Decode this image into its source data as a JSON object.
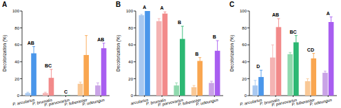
{
  "chart_data": [
    {
      "type": "bar",
      "title": "A",
      "y_label": "Decolorization (%)",
      "categories": [
        "P. arcularius",
        "P. brumalis",
        "P. parvovarius",
        "P. tuberaster",
        "P. udeungus"
      ],
      "series": [
        {
          "colors": [
            "#a8c8f0",
            "#f4b3b3",
            "#8fd9ad",
            "#f9c896",
            "#c9a3e6"
          ],
          "values": [
            3,
            3,
            0,
            14,
            12
          ],
          "errors": [
            1,
            1,
            0,
            2,
            3
          ]
        },
        {
          "colors": [
            "#4a96ea",
            "#f28a8a",
            "#2cb873",
            "#f9a650",
            "#a85ef0"
          ],
          "values": [
            50,
            21,
            0,
            48,
            56
          ],
          "errors": [
            8,
            10,
            0,
            23,
            6
          ]
        }
      ],
      "annotations": [
        "AB",
        "BC",
        "C",
        null,
        "AB"
      ],
      "ylim": [
        0,
        100
      ],
      "yticks": [
        0,
        20,
        40,
        60,
        80,
        100
      ]
    },
    {
      "type": "bar",
      "title": "B",
      "y_label": "Decolorization (%)",
      "categories": [
        "arcularius",
        "P. brumalis",
        "P. parvovarius",
        "P. tuberaster",
        "P. udeungus"
      ],
      "series": [
        {
          "colors": [
            "#a8c8f0",
            "#f4b3b3",
            "#8fd9ad",
            "#f9c896",
            "#c9a3e6"
          ],
          "values": [
            95,
            88,
            12,
            10,
            15
          ],
          "errors": [
            1,
            3,
            3,
            2,
            2
          ]
        },
        {
          "colors": [
            "#4a96ea",
            "#f28a8a",
            "#2cb873",
            "#f9a650",
            "#a85ef0"
          ],
          "values": [
            100,
            97,
            67,
            41,
            53
          ],
          "errors": [
            0,
            2,
            15,
            4,
            12
          ]
        }
      ],
      "annotations": [
        "A",
        "A",
        "B",
        "B",
        "B"
      ],
      "ylim": [
        0,
        100
      ],
      "yticks": [
        0,
        20,
        40,
        60,
        80,
        100
      ]
    },
    {
      "type": "bar",
      "title": "C",
      "y_label": "Decolorization (%)",
      "categories": [
        "P. arcularius",
        "P. brumalis",
        "P. parvovarius",
        "P. tuberaster",
        "P. udeungus"
      ],
      "series": [
        {
          "colors": [
            "#a8c8f0",
            "#f4b3b3",
            "#8fd9ad",
            "#f9c896",
            "#c9a3e6"
          ],
          "values": [
            12,
            45,
            49,
            17,
            27
          ],
          "errors": [
            6,
            15,
            2,
            3,
            2
          ]
        },
        {
          "colors": [
            "#4a96ea",
            "#f28a8a",
            "#2cb873",
            "#f9a650",
            "#a85ef0"
          ],
          "values": [
            22,
            81,
            63,
            44,
            87
          ],
          "errors": [
            8,
            10,
            8,
            6,
            6
          ]
        }
      ],
      "annotations": [
        "D",
        "AB",
        "BC",
        "CD",
        "A"
      ],
      "ylim": [
        0,
        100
      ],
      "yticks": [
        0,
        20,
        40,
        60,
        80,
        100
      ]
    }
  ]
}
